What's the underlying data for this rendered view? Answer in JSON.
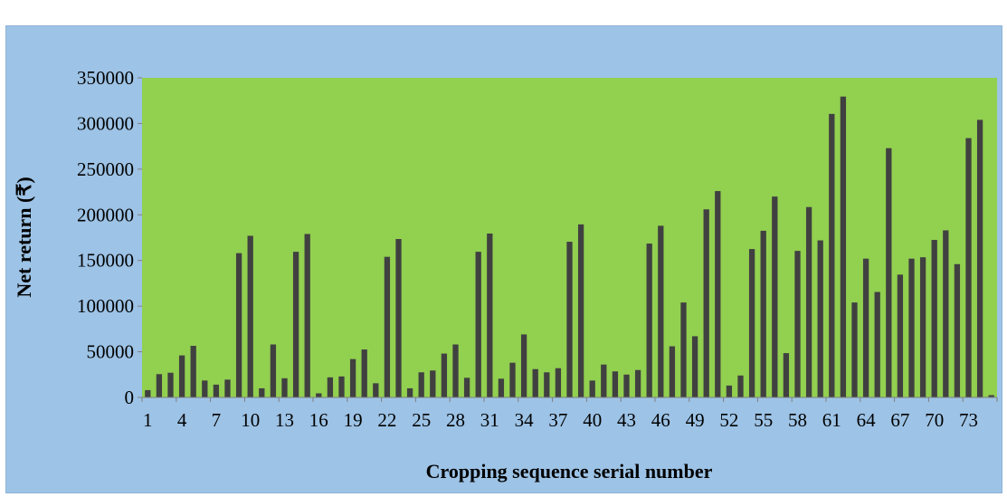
{
  "chart_data": {
    "type": "bar",
    "title": "",
    "xlabel": "Cropping sequence serial number",
    "ylabel": "Net  return (₹)",
    "ylim": [
      0,
      350000
    ],
    "yticks": [
      0,
      50000,
      100000,
      150000,
      200000,
      250000,
      300000,
      350000
    ],
    "ytick_labels": [
      "0",
      "50000",
      "100000",
      "150000",
      "200000",
      "250000",
      "300000",
      "350000"
    ],
    "xtick_labels": [
      "1",
      "4",
      "7",
      "10",
      "13",
      "16",
      "19",
      "22",
      "25",
      "28",
      "31",
      "34",
      "37",
      "40",
      "43",
      "46",
      "49",
      "52",
      "55",
      "58",
      "61",
      "64",
      "67",
      "70",
      "73"
    ],
    "xtick_step": 3,
    "grid": false,
    "legend": "none",
    "colors": {
      "plot_background": "#92d050",
      "bar": "#404040",
      "frame_background": "#9dc3e6"
    },
    "categories": [
      1,
      2,
      3,
      4,
      5,
      6,
      7,
      8,
      9,
      10,
      11,
      12,
      13,
      14,
      15,
      16,
      17,
      18,
      19,
      20,
      21,
      22,
      23,
      24,
      25,
      26,
      27,
      28,
      29,
      30,
      31,
      32,
      33,
      34,
      35,
      36,
      37,
      38,
      39,
      40,
      41,
      42,
      43,
      44,
      45,
      46,
      47,
      48,
      49,
      50,
      51,
      52,
      53,
      54,
      55,
      56,
      57,
      58,
      59,
      60,
      61,
      62,
      63,
      64,
      65,
      66,
      67,
      68,
      69,
      70,
      71,
      72,
      73,
      74,
      75
    ],
    "values": [
      8000,
      25500,
      27000,
      46000,
      56500,
      18500,
      14000,
      19500,
      158000,
      177000,
      10000,
      58000,
      21000,
      159500,
      179000,
      4500,
      22000,
      23000,
      42000,
      52500,
      15500,
      154000,
      173500,
      10000,
      27500,
      29500,
      48000,
      58000,
      21500,
      159500,
      179500,
      20500,
      38000,
      69000,
      31000,
      27500,
      32000,
      170500,
      189500,
      18500,
      36000,
      28500,
      25000,
      30000,
      168500,
      188000,
      56000,
      104000,
      67000,
      206000,
      226000,
      13000,
      24000,
      162500,
      182500,
      220000,
      48500,
      160500,
      208500,
      172000,
      310500,
      329500,
      104000,
      152000,
      115500,
      273000,
      134500,
      152000,
      153500,
      172500,
      183000,
      146000,
      284000,
      304000,
      2500
    ]
  }
}
